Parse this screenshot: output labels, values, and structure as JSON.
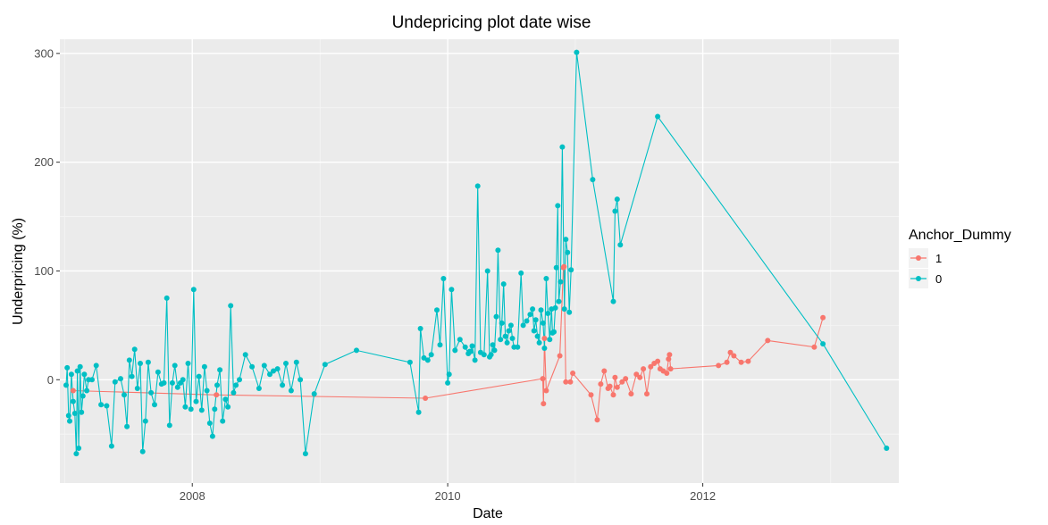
{
  "chart_data": {
    "type": "line",
    "title": "Undepricing plot date wise",
    "xlabel": "Date",
    "ylabel": "Underpricing (%)",
    "x_type": "date",
    "xlim": [
      "2006-12-18",
      "2013-07-15"
    ],
    "ylim": [
      -95,
      313
    ],
    "x_ticks": [
      {
        "date": "2008-01-01",
        "label": "2008"
      },
      {
        "date": "2010-01-01",
        "label": "2010"
      },
      {
        "date": "2012-01-01",
        "label": "2012"
      }
    ],
    "x_minor_ticks": [
      "2007-01-01",
      "2009-01-01",
      "2011-01-01",
      "2013-01-01"
    ],
    "y_ticks": [
      0,
      100,
      200,
      300
    ],
    "y_minor_ticks": [
      -50,
      50,
      150,
      250
    ],
    "grid": true,
    "legend": {
      "title": "Anchor_Dummy",
      "position": "right"
    },
    "series": [
      {
        "name": "1",
        "color": "#F8766D",
        "points": [
          [
            "2007-01-25",
            -10
          ],
          [
            "2008-03-10",
            -14
          ],
          [
            "2009-10-29",
            -17
          ],
          [
            "2010-09-30",
            1
          ],
          [
            "2010-10-02",
            -22
          ],
          [
            "2010-10-05",
            38
          ],
          [
            "2010-10-10",
            -10
          ],
          [
            "2010-11-18",
            22
          ],
          [
            "2010-11-28",
            103
          ],
          [
            "2010-11-30",
            104
          ],
          [
            "2010-12-05",
            -2
          ],
          [
            "2010-12-18",
            -2
          ],
          [
            "2010-12-25",
            6
          ],
          [
            "2011-02-15",
            -14
          ],
          [
            "2011-03-05",
            -37
          ],
          [
            "2011-03-15",
            -4
          ],
          [
            "2011-03-25",
            8
          ],
          [
            "2011-04-05",
            -8
          ],
          [
            "2011-04-10",
            -6
          ],
          [
            "2011-04-20",
            -14
          ],
          [
            "2011-04-25",
            2
          ],
          [
            "2011-05-01",
            -7
          ],
          [
            "2011-05-15",
            -2
          ],
          [
            "2011-05-25",
            1
          ],
          [
            "2011-06-10",
            -13
          ],
          [
            "2011-06-25",
            5
          ],
          [
            "2011-07-05",
            2
          ],
          [
            "2011-07-15",
            10
          ],
          [
            "2011-07-25",
            -13
          ],
          [
            "2011-08-05",
            12
          ],
          [
            "2011-08-15",
            15
          ],
          [
            "2011-08-25",
            17
          ],
          [
            "2011-09-01",
            10
          ],
          [
            "2011-09-10",
            8
          ],
          [
            "2011-09-20",
            6
          ],
          [
            "2011-09-25",
            19
          ],
          [
            "2011-09-28",
            23
          ],
          [
            "2011-10-01",
            10
          ],
          [
            "2012-02-15",
            13
          ],
          [
            "2012-03-10",
            16
          ],
          [
            "2012-03-20",
            25
          ],
          [
            "2012-03-30",
            22
          ],
          [
            "2012-04-20",
            16
          ],
          [
            "2012-05-10",
            17
          ],
          [
            "2012-07-05",
            36
          ],
          [
            "2012-11-15",
            30
          ],
          [
            "2012-12-10",
            57
          ]
        ]
      },
      {
        "name": "0",
        "color": "#00BFC4",
        "points": [
          [
            "2007-01-05",
            -5
          ],
          [
            "2007-01-08",
            11
          ],
          [
            "2007-01-12",
            -33
          ],
          [
            "2007-01-15",
            -38
          ],
          [
            "2007-01-20",
            5
          ],
          [
            "2007-01-25",
            -20
          ],
          [
            "2007-01-30",
            -31
          ],
          [
            "2007-02-03",
            -68
          ],
          [
            "2007-02-06",
            8
          ],
          [
            "2007-02-10",
            -63
          ],
          [
            "2007-02-14",
            12
          ],
          [
            "2007-02-18",
            -30
          ],
          [
            "2007-02-22",
            -15
          ],
          [
            "2007-02-26",
            5
          ],
          [
            "2007-03-05",
            -10
          ],
          [
            "2007-03-10",
            0
          ],
          [
            "2007-03-20",
            0
          ],
          [
            "2007-04-01",
            13
          ],
          [
            "2007-04-15",
            -23
          ],
          [
            "2007-05-01",
            -24
          ],
          [
            "2007-05-15",
            -61
          ],
          [
            "2007-05-25",
            -2
          ],
          [
            "2007-06-10",
            1
          ],
          [
            "2007-06-20",
            -14
          ],
          [
            "2007-06-28",
            -43
          ],
          [
            "2007-07-05",
            18
          ],
          [
            "2007-07-12",
            3
          ],
          [
            "2007-07-20",
            28
          ],
          [
            "2007-07-28",
            -8
          ],
          [
            "2007-08-05",
            15
          ],
          [
            "2007-08-12",
            -66
          ],
          [
            "2007-08-20",
            -38
          ],
          [
            "2007-08-28",
            16
          ],
          [
            "2007-09-05",
            -12
          ],
          [
            "2007-09-15",
            -23
          ],
          [
            "2007-09-25",
            7
          ],
          [
            "2007-10-05",
            -4
          ],
          [
            "2007-10-12",
            -3
          ],
          [
            "2007-10-20",
            75
          ],
          [
            "2007-10-28",
            -42
          ],
          [
            "2007-11-05",
            -3
          ],
          [
            "2007-11-12",
            13
          ],
          [
            "2007-11-20",
            -7
          ],
          [
            "2007-11-28",
            -3
          ],
          [
            "2007-12-05",
            0
          ],
          [
            "2007-12-12",
            -25
          ],
          [
            "2007-12-20",
            15
          ],
          [
            "2007-12-28",
            -27
          ],
          [
            "2008-01-05",
            83
          ],
          [
            "2008-01-12",
            -20
          ],
          [
            "2008-01-20",
            3
          ],
          [
            "2008-01-28",
            -28
          ],
          [
            "2008-02-05",
            12
          ],
          [
            "2008-02-12",
            -10
          ],
          [
            "2008-02-20",
            -40
          ],
          [
            "2008-02-28",
            -52
          ],
          [
            "2008-03-05",
            -27
          ],
          [
            "2008-03-12",
            -5
          ],
          [
            "2008-03-20",
            9
          ],
          [
            "2008-03-28",
            -38
          ],
          [
            "2008-04-05",
            -18
          ],
          [
            "2008-04-12",
            -25
          ],
          [
            "2008-04-20",
            68
          ],
          [
            "2008-04-28",
            -12
          ],
          [
            "2008-05-05",
            -5
          ],
          [
            "2008-05-15",
            0
          ],
          [
            "2008-06-01",
            23
          ],
          [
            "2008-06-20",
            12
          ],
          [
            "2008-07-10",
            -8
          ],
          [
            "2008-07-25",
            13
          ],
          [
            "2008-08-10",
            5
          ],
          [
            "2008-08-20",
            8
          ],
          [
            "2008-09-01",
            10
          ],
          [
            "2008-09-15",
            -5
          ],
          [
            "2008-09-25",
            15
          ],
          [
            "2008-10-10",
            -10
          ],
          [
            "2008-10-25",
            16
          ],
          [
            "2008-11-05",
            0
          ],
          [
            "2008-11-20",
            -68
          ],
          [
            "2008-12-15",
            -13
          ],
          [
            "2009-01-15",
            14
          ],
          [
            "2009-04-15",
            27
          ],
          [
            "2009-09-15",
            16
          ],
          [
            "2009-10-10",
            -30
          ],
          [
            "2009-10-15",
            47
          ],
          [
            "2009-10-25",
            20
          ],
          [
            "2009-11-05",
            18
          ],
          [
            "2009-11-15",
            23
          ],
          [
            "2009-12-01",
            64
          ],
          [
            "2009-12-10",
            32
          ],
          [
            "2009-12-20",
            93
          ],
          [
            "2010-01-01",
            -3
          ],
          [
            "2010-01-05",
            5
          ],
          [
            "2010-01-12",
            83
          ],
          [
            "2010-01-22",
            27
          ],
          [
            "2010-02-05",
            37
          ],
          [
            "2010-02-20",
            30
          ],
          [
            "2010-03-01",
            24
          ],
          [
            "2010-03-05",
            26
          ],
          [
            "2010-03-08",
            26
          ],
          [
            "2010-03-12",
            31
          ],
          [
            "2010-03-20",
            18
          ],
          [
            "2010-03-28",
            178
          ],
          [
            "2010-04-05",
            25
          ],
          [
            "2010-04-15",
            23
          ],
          [
            "2010-04-25",
            100
          ],
          [
            "2010-05-01",
            21
          ],
          [
            "2010-05-05",
            23
          ],
          [
            "2010-05-10",
            32
          ],
          [
            "2010-05-15",
            27
          ],
          [
            "2010-05-20",
            58
          ],
          [
            "2010-05-25",
            119
          ],
          [
            "2010-06-01",
            37
          ],
          [
            "2010-06-05",
            52
          ],
          [
            "2010-06-10",
            88
          ],
          [
            "2010-06-15",
            40
          ],
          [
            "2010-06-20",
            34
          ],
          [
            "2010-06-25",
            45
          ],
          [
            "2010-07-01",
            50
          ],
          [
            "2010-07-05",
            38
          ],
          [
            "2010-07-10",
            30
          ],
          [
            "2010-07-20",
            30
          ],
          [
            "2010-07-30",
            98
          ],
          [
            "2010-08-05",
            50
          ],
          [
            "2010-08-15",
            54
          ],
          [
            "2010-08-25",
            60
          ],
          [
            "2010-09-01",
            65
          ],
          [
            "2010-09-05",
            45
          ],
          [
            "2010-09-10",
            55
          ],
          [
            "2010-09-15",
            40
          ],
          [
            "2010-09-20",
            34
          ],
          [
            "2010-09-25",
            64
          ],
          [
            "2010-10-01",
            52
          ],
          [
            "2010-10-05",
            29
          ],
          [
            "2010-10-10",
            93
          ],
          [
            "2010-10-15",
            61
          ],
          [
            "2010-10-20",
            37
          ],
          [
            "2010-10-25",
            65
          ],
          [
            "2010-10-28",
            43
          ],
          [
            "2010-11-01",
            44
          ],
          [
            "2010-11-05",
            66
          ],
          [
            "2010-11-08",
            103
          ],
          [
            "2010-11-12",
            160
          ],
          [
            "2010-11-15",
            72
          ],
          [
            "2010-11-20",
            90
          ],
          [
            "2010-11-25",
            214
          ],
          [
            "2010-12-01",
            65
          ],
          [
            "2010-12-05",
            129
          ],
          [
            "2010-12-10",
            117
          ],
          [
            "2010-12-15",
            62
          ],
          [
            "2010-12-20",
            101
          ],
          [
            "2011-01-05",
            301
          ],
          [
            "2011-02-20",
            184
          ],
          [
            "2011-04-20",
            72
          ],
          [
            "2011-04-25",
            155
          ],
          [
            "2011-05-01",
            166
          ],
          [
            "2011-05-10",
            124
          ],
          [
            "2011-08-25",
            242
          ],
          [
            "2012-12-10",
            33
          ],
          [
            "2013-06-10",
            -63
          ]
        ]
      }
    ]
  }
}
